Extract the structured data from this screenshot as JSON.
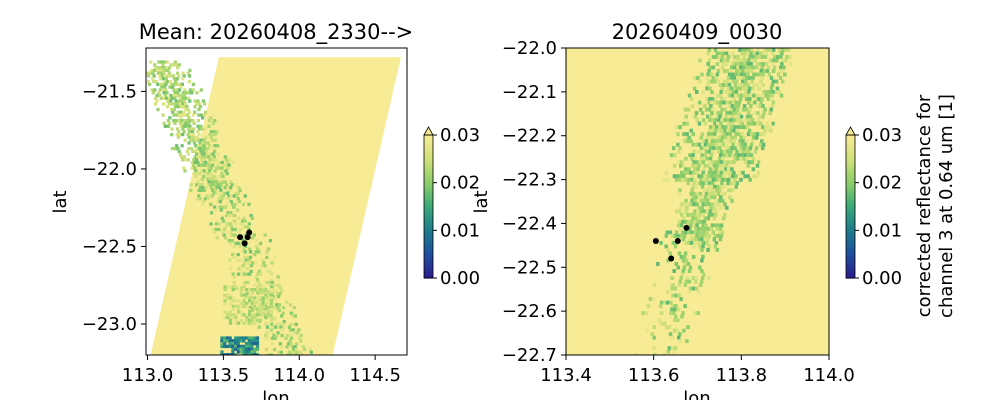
{
  "chart_data": [
    {
      "type": "heatmap",
      "title": "Mean: 20260408_2330-->",
      "xlabel": "lon",
      "ylabel": "lat",
      "xlim": [
        112.99,
        114.71
      ],
      "ylim": [
        -23.2,
        -21.22
      ],
      "xticks": [
        113.0,
        113.5,
        114.0,
        114.5
      ],
      "xtick_labels": [
        "113.0",
        "113.5",
        "114.0",
        "114.5"
      ],
      "yticks": [
        -21.5,
        -22.0,
        -22.5,
        -23.0
      ],
      "ytick_labels": [
        "−21.5",
        "−22.0",
        "−22.5",
        "−23.0"
      ],
      "swath": {
        "lon_top_left": 113.47,
        "lon_top_right": 114.67,
        "lon_bottom_left": 113.02,
        "lon_bottom_right": 114.22,
        "lat_top": -21.28,
        "lat_bottom": -23.2
      },
      "points": [
        {
          "lon": 113.61,
          "lat": -22.44
        },
        {
          "lon": 113.64,
          "lat": -22.48
        },
        {
          "lon": 113.66,
          "lat": -22.44
        },
        {
          "lon": 113.67,
          "lat": -22.41
        }
      ],
      "colorbar": {
        "min": 0.0,
        "max": 0.03,
        "extend": "max",
        "ticks": [
          0.0,
          0.01,
          0.02,
          0.03
        ],
        "tick_labels": [
          "0.00",
          "0.01",
          "0.02",
          "0.03"
        ],
        "label": ""
      },
      "colormap": [
        "#2b1b8c",
        "#1f4e9e",
        "#1d7b8c",
        "#39a87a",
        "#8ccd6a",
        "#cfe07a",
        "#f7eb96"
      ]
    },
    {
      "type": "heatmap",
      "title": "20260409_0030",
      "xlabel": "lon",
      "ylabel": "lat",
      "xlim": [
        113.4,
        114.0
      ],
      "ylim": [
        -22.7,
        -22.0
      ],
      "xticks": [
        113.4,
        113.6,
        113.8,
        114.0
      ],
      "xtick_labels": [
        "113.4",
        "113.6",
        "113.8",
        "114.0"
      ],
      "yticks": [
        -22.0,
        -22.1,
        -22.2,
        -22.3,
        -22.4,
        -22.5,
        -22.6,
        -22.7
      ],
      "ytick_labels": [
        "−22.0",
        "−22.1",
        "−22.2",
        "−22.3",
        "−22.4",
        "−22.5",
        "−22.6",
        "−22.7"
      ],
      "points": [
        {
          "lon": 113.605,
          "lat": -22.44
        },
        {
          "lon": 113.64,
          "lat": -22.48
        },
        {
          "lon": 113.655,
          "lat": -22.44
        },
        {
          "lon": 113.675,
          "lat": -22.41
        }
      ],
      "colorbar": {
        "min": 0.0,
        "max": 0.03,
        "extend": "max",
        "ticks": [
          0.0,
          0.01,
          0.02,
          0.03
        ],
        "tick_labels": [
          "0.00",
          "0.01",
          "0.02",
          "0.03"
        ],
        "label": "corrected reflectance for channel 3 at 0.64 um [1]",
        "label_lines": [
          "corrected reflectance for",
          "channel 3 at 0.64 um [1]"
        ]
      },
      "colormap": [
        "#2b1b8c",
        "#1f4e9e",
        "#1d7b8c",
        "#39a87a",
        "#8ccd6a",
        "#cfe07a",
        "#f7eb96"
      ]
    }
  ]
}
